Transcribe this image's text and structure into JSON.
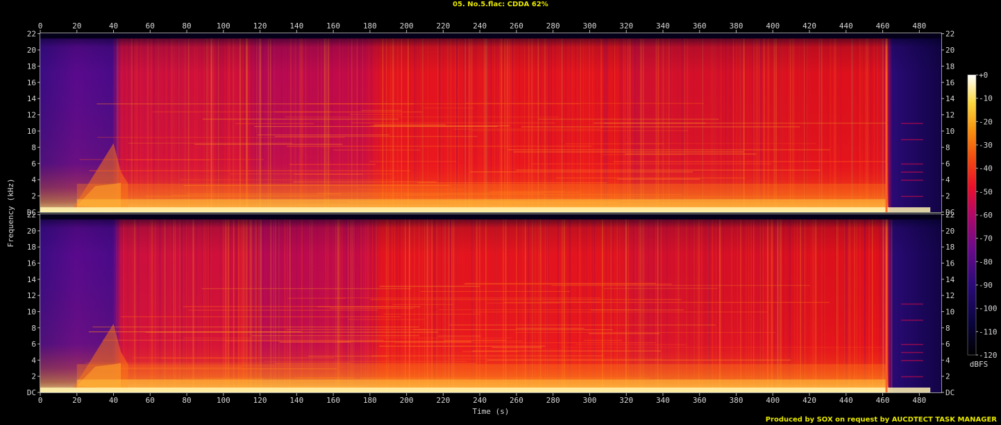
{
  "title": "05. No.5.flac: CDDA 62%",
  "credit": "Produced by SOX on request by AUCDTECT TASK MANAGER",
  "chart_data": {
    "type": "heatmap",
    "subtype": "spectrogram",
    "xlabel": "Time (s)",
    "ylabel": "Frequency (kHz)",
    "xlim": [
      0,
      492
    ],
    "ylim": [
      0,
      22.05
    ],
    "x_ticks": [
      "0",
      "20",
      "40",
      "60",
      "80",
      "100",
      "120",
      "140",
      "160",
      "180",
      "200",
      "220",
      "240",
      "260",
      "280",
      "300",
      "320",
      "340",
      "360",
      "380",
      "400",
      "420",
      "440",
      "460",
      "480"
    ],
    "y_ticks": [
      "DC",
      "2",
      "4",
      "6",
      "8",
      "10",
      "12",
      "14",
      "16",
      "18",
      "20",
      "22"
    ],
    "channels": 2,
    "colorbar": {
      "label": "dBFS",
      "ticks": [
        "+0",
        "-10",
        "-20",
        "-30",
        "-40",
        "-50",
        "-60",
        "-70",
        "-80",
        "-90",
        "-100",
        "-110",
        "-120"
      ],
      "range": [
        -120,
        0
      ]
    },
    "approx_level_dbfs": {
      "segment_boundaries_s": [
        0,
        20,
        42,
        112,
        180,
        325,
        462,
        492
      ],
      "full_band_level": [
        -95,
        -88,
        -62,
        -58,
        -52,
        -60,
        -103
      ],
      "cutoff_khz": 21.4
    }
  }
}
